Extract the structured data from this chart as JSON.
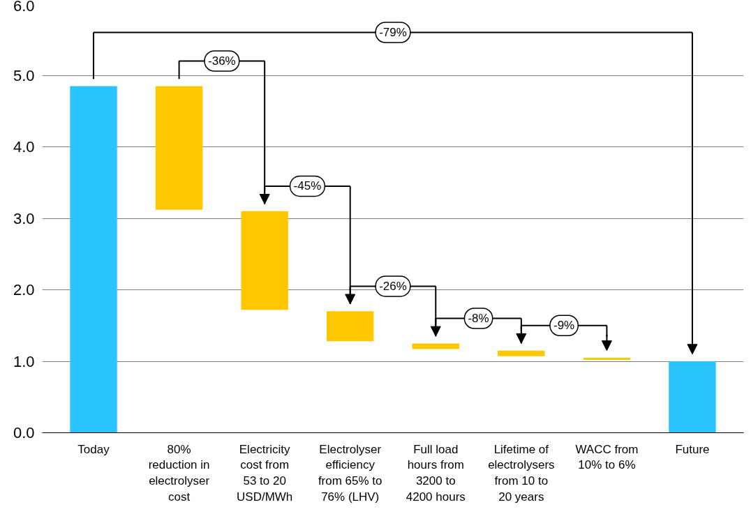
{
  "chart_data": {
    "type": "bar",
    "categories": [
      "Today",
      "80%\nreduction in\nelectrolyser\ncost",
      "Electricity\ncost from\n53 to 20\nUSD/MWh",
      "Electrolyser\nefficiency\nfrom 65% to\n76% (LHV)",
      "Full load\nhours from\n3200 to\n4200 hours",
      "Lifetime of\nelectrolysers\nfrom 10 to\n20 years",
      "WACC from\n10% to 6%",
      "Future"
    ],
    "values": [
      4.85,
      1.73,
      1.38,
      0.42,
      0.08,
      0.08,
      0.03,
      1.0
    ],
    "base": [
      0,
      3.12,
      1.72,
      1.28,
      1.17,
      1.07,
      1.02,
      0
    ],
    "colors": [
      "#29c4fd",
      "#ffc700",
      "#ffc700",
      "#ffc700",
      "#ffc700",
      "#ffc700",
      "#ffc700",
      "#29c4fd"
    ],
    "ylim": [
      0,
      6
    ],
    "yticks": [
      {
        "value": 0,
        "label": "0.0"
      },
      {
        "value": 1,
        "label": "1.0"
      },
      {
        "value": 2,
        "label": "2.0"
      },
      {
        "value": 3,
        "label": "3.0"
      },
      {
        "value": 4,
        "label": "4.0"
      },
      {
        "value": 5,
        "label": "5.0"
      },
      {
        "value": 6,
        "label": "6.0"
      }
    ],
    "grid": "y",
    "annotations": [
      "-79%",
      "-36%",
      "-45%",
      "-26%",
      "-8%",
      "-9%"
    ]
  }
}
